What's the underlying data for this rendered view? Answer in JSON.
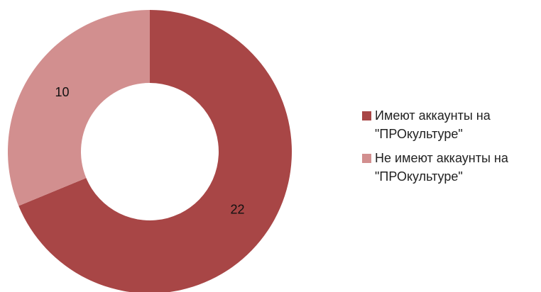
{
  "chart_data": {
    "type": "pie",
    "donut": true,
    "categories": [
      "Имеют аккаунты на \"ПРОкультуре\"",
      "Не имеют аккаунты на \"ПРОкультуре\""
    ],
    "values": [
      22,
      10
    ],
    "colors": [
      "#a84646",
      "#d28f8f"
    ],
    "title": "",
    "legend_position": "right"
  },
  "legend": {
    "items": [
      {
        "label": "Имеют аккаунты на\n\"ПРОкультуре\"",
        "color": "#a84646"
      },
      {
        "label": "Не имеют аккаунты на\n\"ПРОкультуре\"",
        "color": "#d28f8f"
      }
    ]
  }
}
